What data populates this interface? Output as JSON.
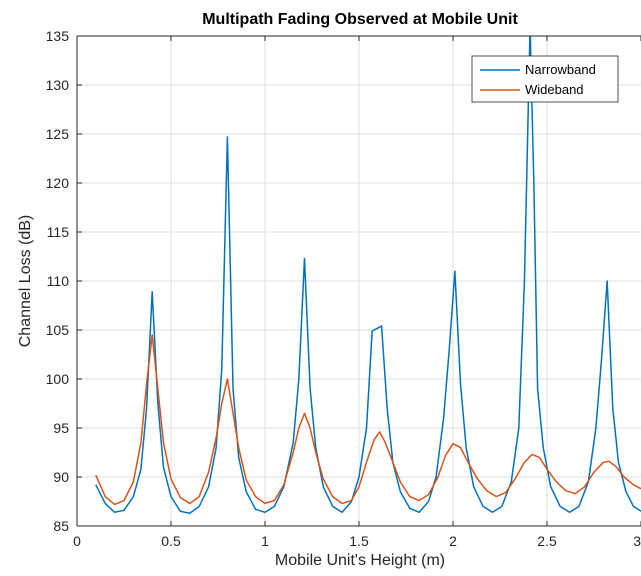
{
  "chart_data": {
    "type": "line",
    "title": "Multipath Fading Observed at Mobile Unit",
    "xlabel": "Mobile Unit's Height (m)",
    "ylabel": "Channel Loss (dB)",
    "xlim": [
      0,
      3
    ],
    "ylim": [
      85,
      135
    ],
    "xticks": [
      0,
      0.5,
      1,
      1.5,
      2,
      2.5,
      3
    ],
    "xtick_labels": [
      "0",
      "0.5",
      "1",
      "1.5",
      "2",
      "2.5",
      "3"
    ],
    "yticks": [
      85,
      90,
      95,
      100,
      105,
      110,
      115,
      120,
      125,
      130,
      135
    ],
    "ytick_labels": [
      "85",
      "90",
      "95",
      "100",
      "105",
      "110",
      "115",
      "120",
      "125",
      "130",
      "135"
    ],
    "grid": true,
    "legend_position": "top-right",
    "series": [
      {
        "name": "Narrowband",
        "color": "#0072BD",
        "points": [
          [
            0.1,
            89.2
          ],
          [
            0.15,
            87.3
          ],
          [
            0.2,
            86.4
          ],
          [
            0.25,
            86.6
          ],
          [
            0.3,
            88.0
          ],
          [
            0.34,
            90.8
          ],
          [
            0.37,
            97.0
          ],
          [
            0.4,
            108.9
          ],
          [
            0.43,
            97.5
          ],
          [
            0.46,
            91.0
          ],
          [
            0.5,
            88.0
          ],
          [
            0.55,
            86.5
          ],
          [
            0.6,
            86.3
          ],
          [
            0.65,
            87.0
          ],
          [
            0.7,
            89.0
          ],
          [
            0.74,
            93.0
          ],
          [
            0.77,
            101.0
          ],
          [
            0.8,
            124.7
          ],
          [
            0.83,
            99.0
          ],
          [
            0.86,
            92.0
          ],
          [
            0.9,
            88.5
          ],
          [
            0.95,
            86.7
          ],
          [
            1.0,
            86.4
          ],
          [
            1.05,
            87.0
          ],
          [
            1.1,
            89.0
          ],
          [
            1.15,
            93.5
          ],
          [
            1.18,
            100.0
          ],
          [
            1.21,
            112.3
          ],
          [
            1.24,
            99.0
          ],
          [
            1.27,
            93.0
          ],
          [
            1.31,
            89.0
          ],
          [
            1.36,
            87.0
          ],
          [
            1.41,
            86.4
          ],
          [
            1.46,
            87.5
          ],
          [
            1.5,
            90.0
          ],
          [
            1.54,
            95.0
          ],
          [
            1.57,
            104.9
          ],
          [
            1.6,
            105.2
          ],
          [
            1.62,
            105.4
          ],
          [
            1.65,
            97.0
          ],
          [
            1.68,
            91.5
          ],
          [
            1.72,
            88.5
          ],
          [
            1.77,
            86.8
          ],
          [
            1.82,
            86.4
          ],
          [
            1.87,
            87.5
          ],
          [
            1.91,
            90.0
          ],
          [
            1.95,
            96.0
          ],
          [
            1.98,
            103.0
          ],
          [
            2.01,
            111.0
          ],
          [
            2.04,
            99.5
          ],
          [
            2.07,
            93.0
          ],
          [
            2.11,
            89.0
          ],
          [
            2.16,
            87.0
          ],
          [
            2.21,
            86.4
          ],
          [
            2.26,
            87.0
          ],
          [
            2.31,
            89.5
          ],
          [
            2.35,
            95.0
          ],
          [
            2.38,
            110.0
          ],
          [
            2.41,
            136.0
          ],
          [
            2.43,
            120.0
          ],
          [
            2.45,
            99.0
          ],
          [
            2.48,
            93.0
          ],
          [
            2.52,
            89.0
          ],
          [
            2.57,
            87.0
          ],
          [
            2.62,
            86.4
          ],
          [
            2.67,
            87.0
          ],
          [
            2.72,
            89.5
          ],
          [
            2.76,
            95.0
          ],
          [
            2.79,
            102.0
          ],
          [
            2.82,
            110.0
          ],
          [
            2.85,
            97.0
          ],
          [
            2.88,
            91.5
          ],
          [
            2.92,
            88.5
          ],
          [
            2.96,
            87.0
          ],
          [
            3.0,
            86.5
          ]
        ]
      },
      {
        "name": "Wideband",
        "color": "#D95319",
        "points": [
          [
            0.1,
            90.2
          ],
          [
            0.15,
            88.0
          ],
          [
            0.2,
            87.2
          ],
          [
            0.25,
            87.6
          ],
          [
            0.3,
            89.5
          ],
          [
            0.34,
            93.5
          ],
          [
            0.37,
            99.5
          ],
          [
            0.4,
            104.5
          ],
          [
            0.43,
            99.0
          ],
          [
            0.46,
            93.5
          ],
          [
            0.5,
            89.8
          ],
          [
            0.55,
            87.9
          ],
          [
            0.6,
            87.3
          ],
          [
            0.65,
            88.0
          ],
          [
            0.7,
            90.5
          ],
          [
            0.74,
            94.0
          ],
          [
            0.77,
            97.5
          ],
          [
            0.8,
            100.0
          ],
          [
            0.83,
            96.5
          ],
          [
            0.86,
            93.0
          ],
          [
            0.9,
            89.7
          ],
          [
            0.95,
            88.0
          ],
          [
            1.0,
            87.3
          ],
          [
            1.05,
            87.6
          ],
          [
            1.1,
            89.2
          ],
          [
            1.15,
            92.5
          ],
          [
            1.18,
            95.0
          ],
          [
            1.21,
            96.5
          ],
          [
            1.24,
            95.0
          ],
          [
            1.27,
            92.5
          ],
          [
            1.31,
            89.8
          ],
          [
            1.36,
            88.0
          ],
          [
            1.41,
            87.3
          ],
          [
            1.46,
            87.6
          ],
          [
            1.5,
            89.0
          ],
          [
            1.54,
            91.5
          ],
          [
            1.58,
            93.8
          ],
          [
            1.61,
            94.6
          ],
          [
            1.64,
            93.5
          ],
          [
            1.68,
            91.5
          ],
          [
            1.72,
            89.5
          ],
          [
            1.77,
            88.0
          ],
          [
            1.82,
            87.6
          ],
          [
            1.87,
            88.2
          ],
          [
            1.92,
            90.0
          ],
          [
            1.96,
            92.2
          ],
          [
            2.0,
            93.4
          ],
          [
            2.04,
            93.0
          ],
          [
            2.08,
            91.5
          ],
          [
            2.13,
            89.8
          ],
          [
            2.18,
            88.6
          ],
          [
            2.23,
            88.0
          ],
          [
            2.28,
            88.4
          ],
          [
            2.33,
            89.8
          ],
          [
            2.38,
            91.5
          ],
          [
            2.42,
            92.3
          ],
          [
            2.46,
            92.0
          ],
          [
            2.5,
            90.8
          ],
          [
            2.55,
            89.5
          ],
          [
            2.6,
            88.6
          ],
          [
            2.65,
            88.3
          ],
          [
            2.7,
            89.0
          ],
          [
            2.75,
            90.5
          ],
          [
            2.8,
            91.5
          ],
          [
            2.83,
            91.6
          ],
          [
            2.87,
            91.0
          ],
          [
            2.91,
            90.0
          ],
          [
            2.96,
            89.2
          ],
          [
            3.0,
            88.8
          ]
        ]
      }
    ]
  }
}
